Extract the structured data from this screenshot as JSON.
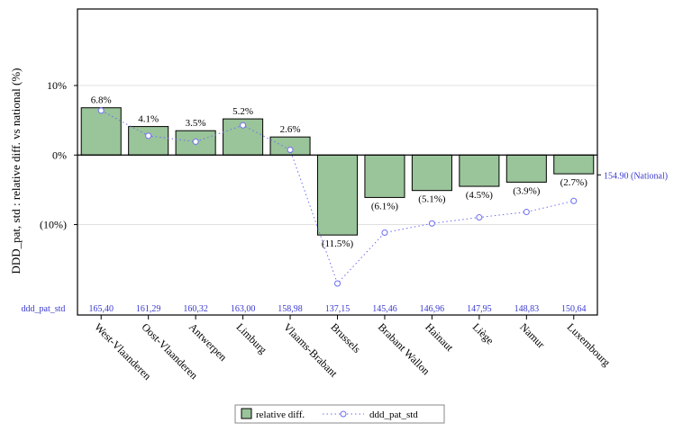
{
  "chart_data": {
    "type": "bar",
    "ylabel": "DDD_pat, std : relative diff. vs national (%)",
    "y_ticks": [
      "10%",
      "0%",
      "(10%)"
    ],
    "y_tick_values": [
      10,
      0,
      -10
    ],
    "ylim": [
      -23,
      21
    ],
    "grid": true,
    "legend_position": "bottom",
    "categories": [
      "West-Vlaanderen",
      "Oost-Vlaanderen",
      "Antwerpen",
      "Limburg",
      "Vlaams-Brabant",
      "Brussels",
      "Brabant Wallon",
      "Hainaut",
      "Liège",
      "Namur",
      "Luxembourg"
    ],
    "series": [
      {
        "name": "relative diff.",
        "type": "bar",
        "values": [
          6.8,
          4.1,
          3.5,
          5.2,
          2.6,
          -11.5,
          -6.1,
          -5.1,
          -4.5,
          -3.9,
          -2.7
        ],
        "labels": [
          "6.8%",
          "4.1%",
          "3.5%",
          "5.2%",
          "2.6%",
          "(11.5%)",
          "(6.1%)",
          "(5.1%)",
          "(4.5%)",
          "(3.9%)",
          "(2.7%)"
        ],
        "color": "#9ac49a"
      },
      {
        "name": "ddd_pat_std",
        "type": "line",
        "values": [
          165.4,
          161.29,
          160.32,
          163.0,
          158.98,
          137.15,
          145.46,
          146.96,
          147.95,
          148.83,
          150.64
        ],
        "labels": [
          "165,40",
          "161,29",
          "160,32",
          "163,00",
          "158,98",
          "137,15",
          "145,46",
          "146,96",
          "147,95",
          "148,83",
          "150,64"
        ],
        "ylim": [
          132,
          182
        ],
        "color": "#6e6ef0"
      }
    ],
    "line_row_label": "ddd_pat_std",
    "national_label": "154.90 (National)",
    "national_value": 154.9
  },
  "colors": {
    "bar_fill": "#9ac49a",
    "bar_stroke": "#000000",
    "line": "#6e6ef0",
    "value_text": "#3a3ad0",
    "grid": "#e0e0e0"
  }
}
